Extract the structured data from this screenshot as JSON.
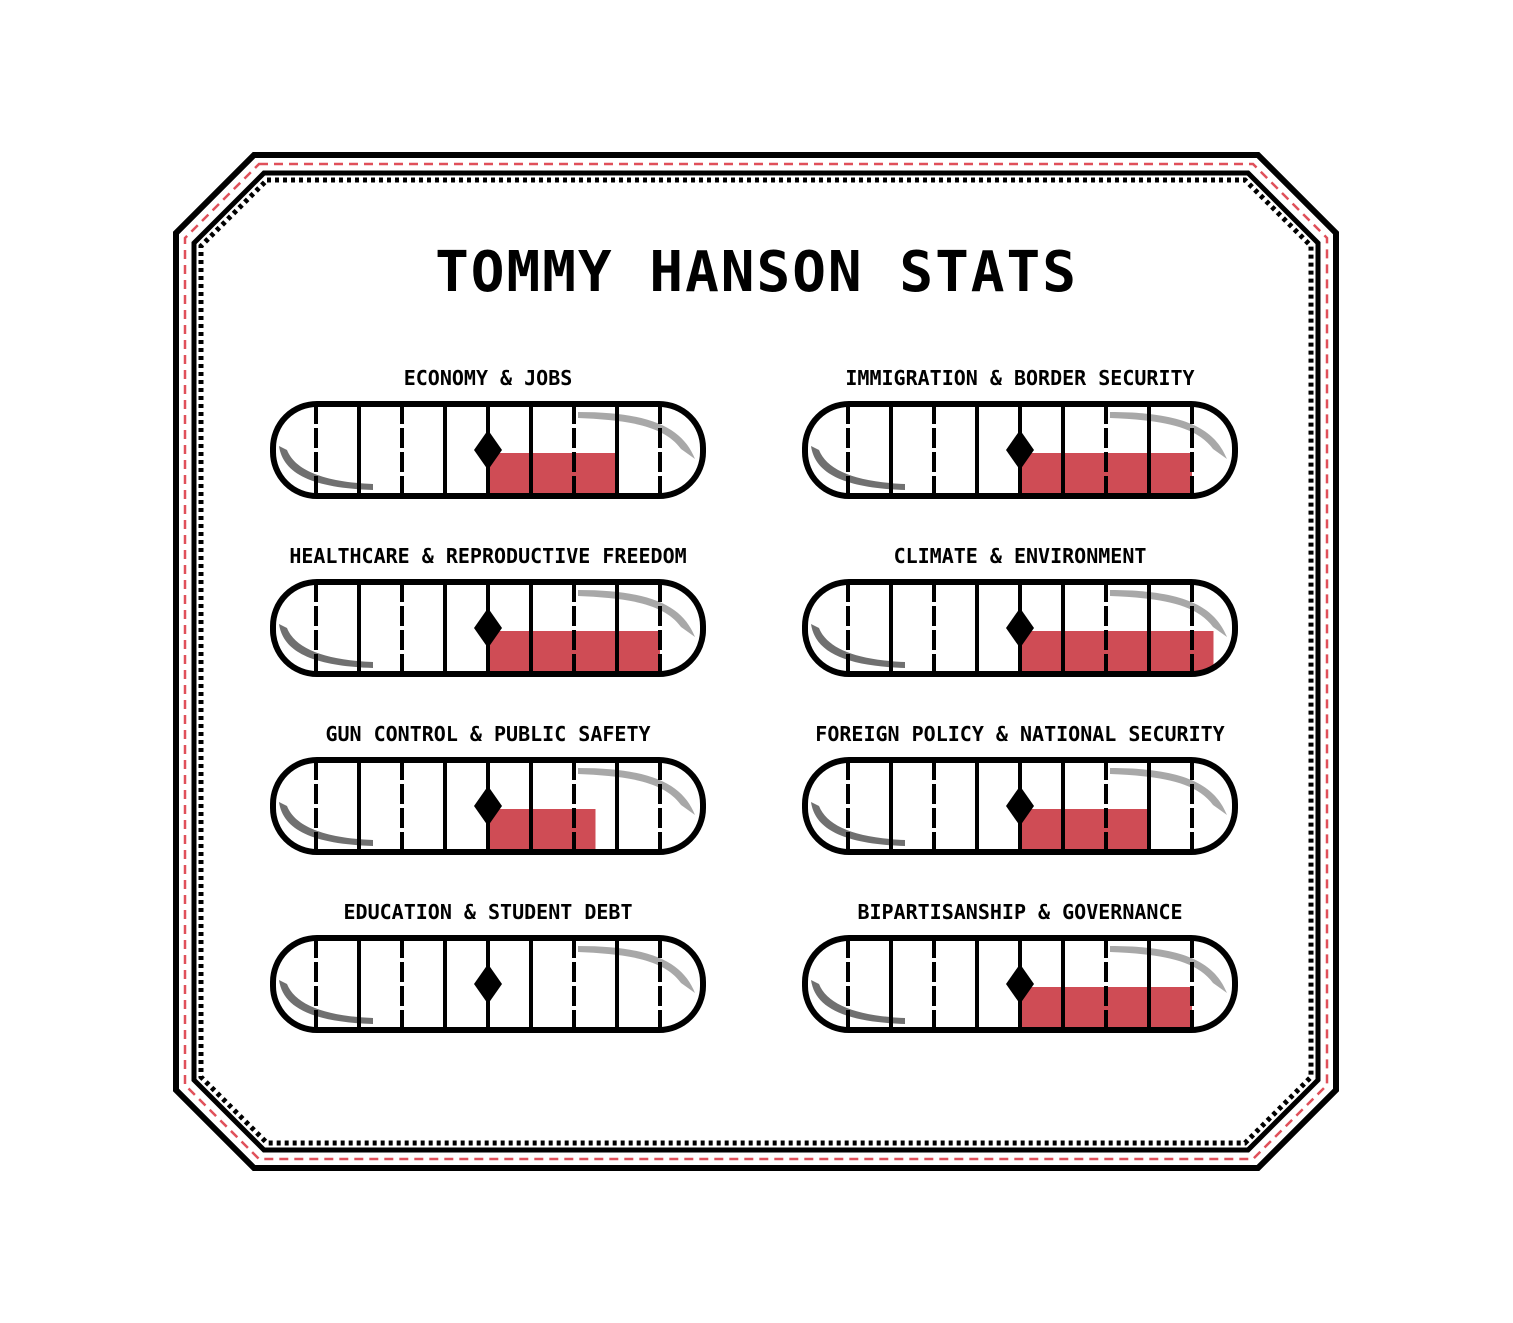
{
  "title": "TOMMY HANSON STATS",
  "scale": {
    "segments": 10,
    "center_segment": 5
  },
  "colors": {
    "fill": "#cf4c55",
    "outline": "#000000",
    "frame_dash": "#e0505a",
    "shine": "#a8a8a8",
    "shadow": "#707070"
  },
  "stats": [
    {
      "label": "ECONOMY & JOBS",
      "level": 3
    },
    {
      "label": "IMMIGRATION & BORDER SECURITY",
      "level": 4
    },
    {
      "label": "HEALTHCARE & REPRODUCTIVE FREEDOM",
      "level": 4
    },
    {
      "label": "CLIMATE & ENVIRONMENT",
      "level": 4.5
    },
    {
      "label": "GUN CONTROL & PUBLIC SAFETY",
      "level": 2.5
    },
    {
      "label": "FOREIGN POLICY & NATIONAL SECURITY",
      "level": 3
    },
    {
      "label": "EDUCATION & STUDENT DEBT",
      "level": 0
    },
    {
      "label": "BIPARTISANSHIP & GOVERNANCE",
      "level": 4
    }
  ]
}
